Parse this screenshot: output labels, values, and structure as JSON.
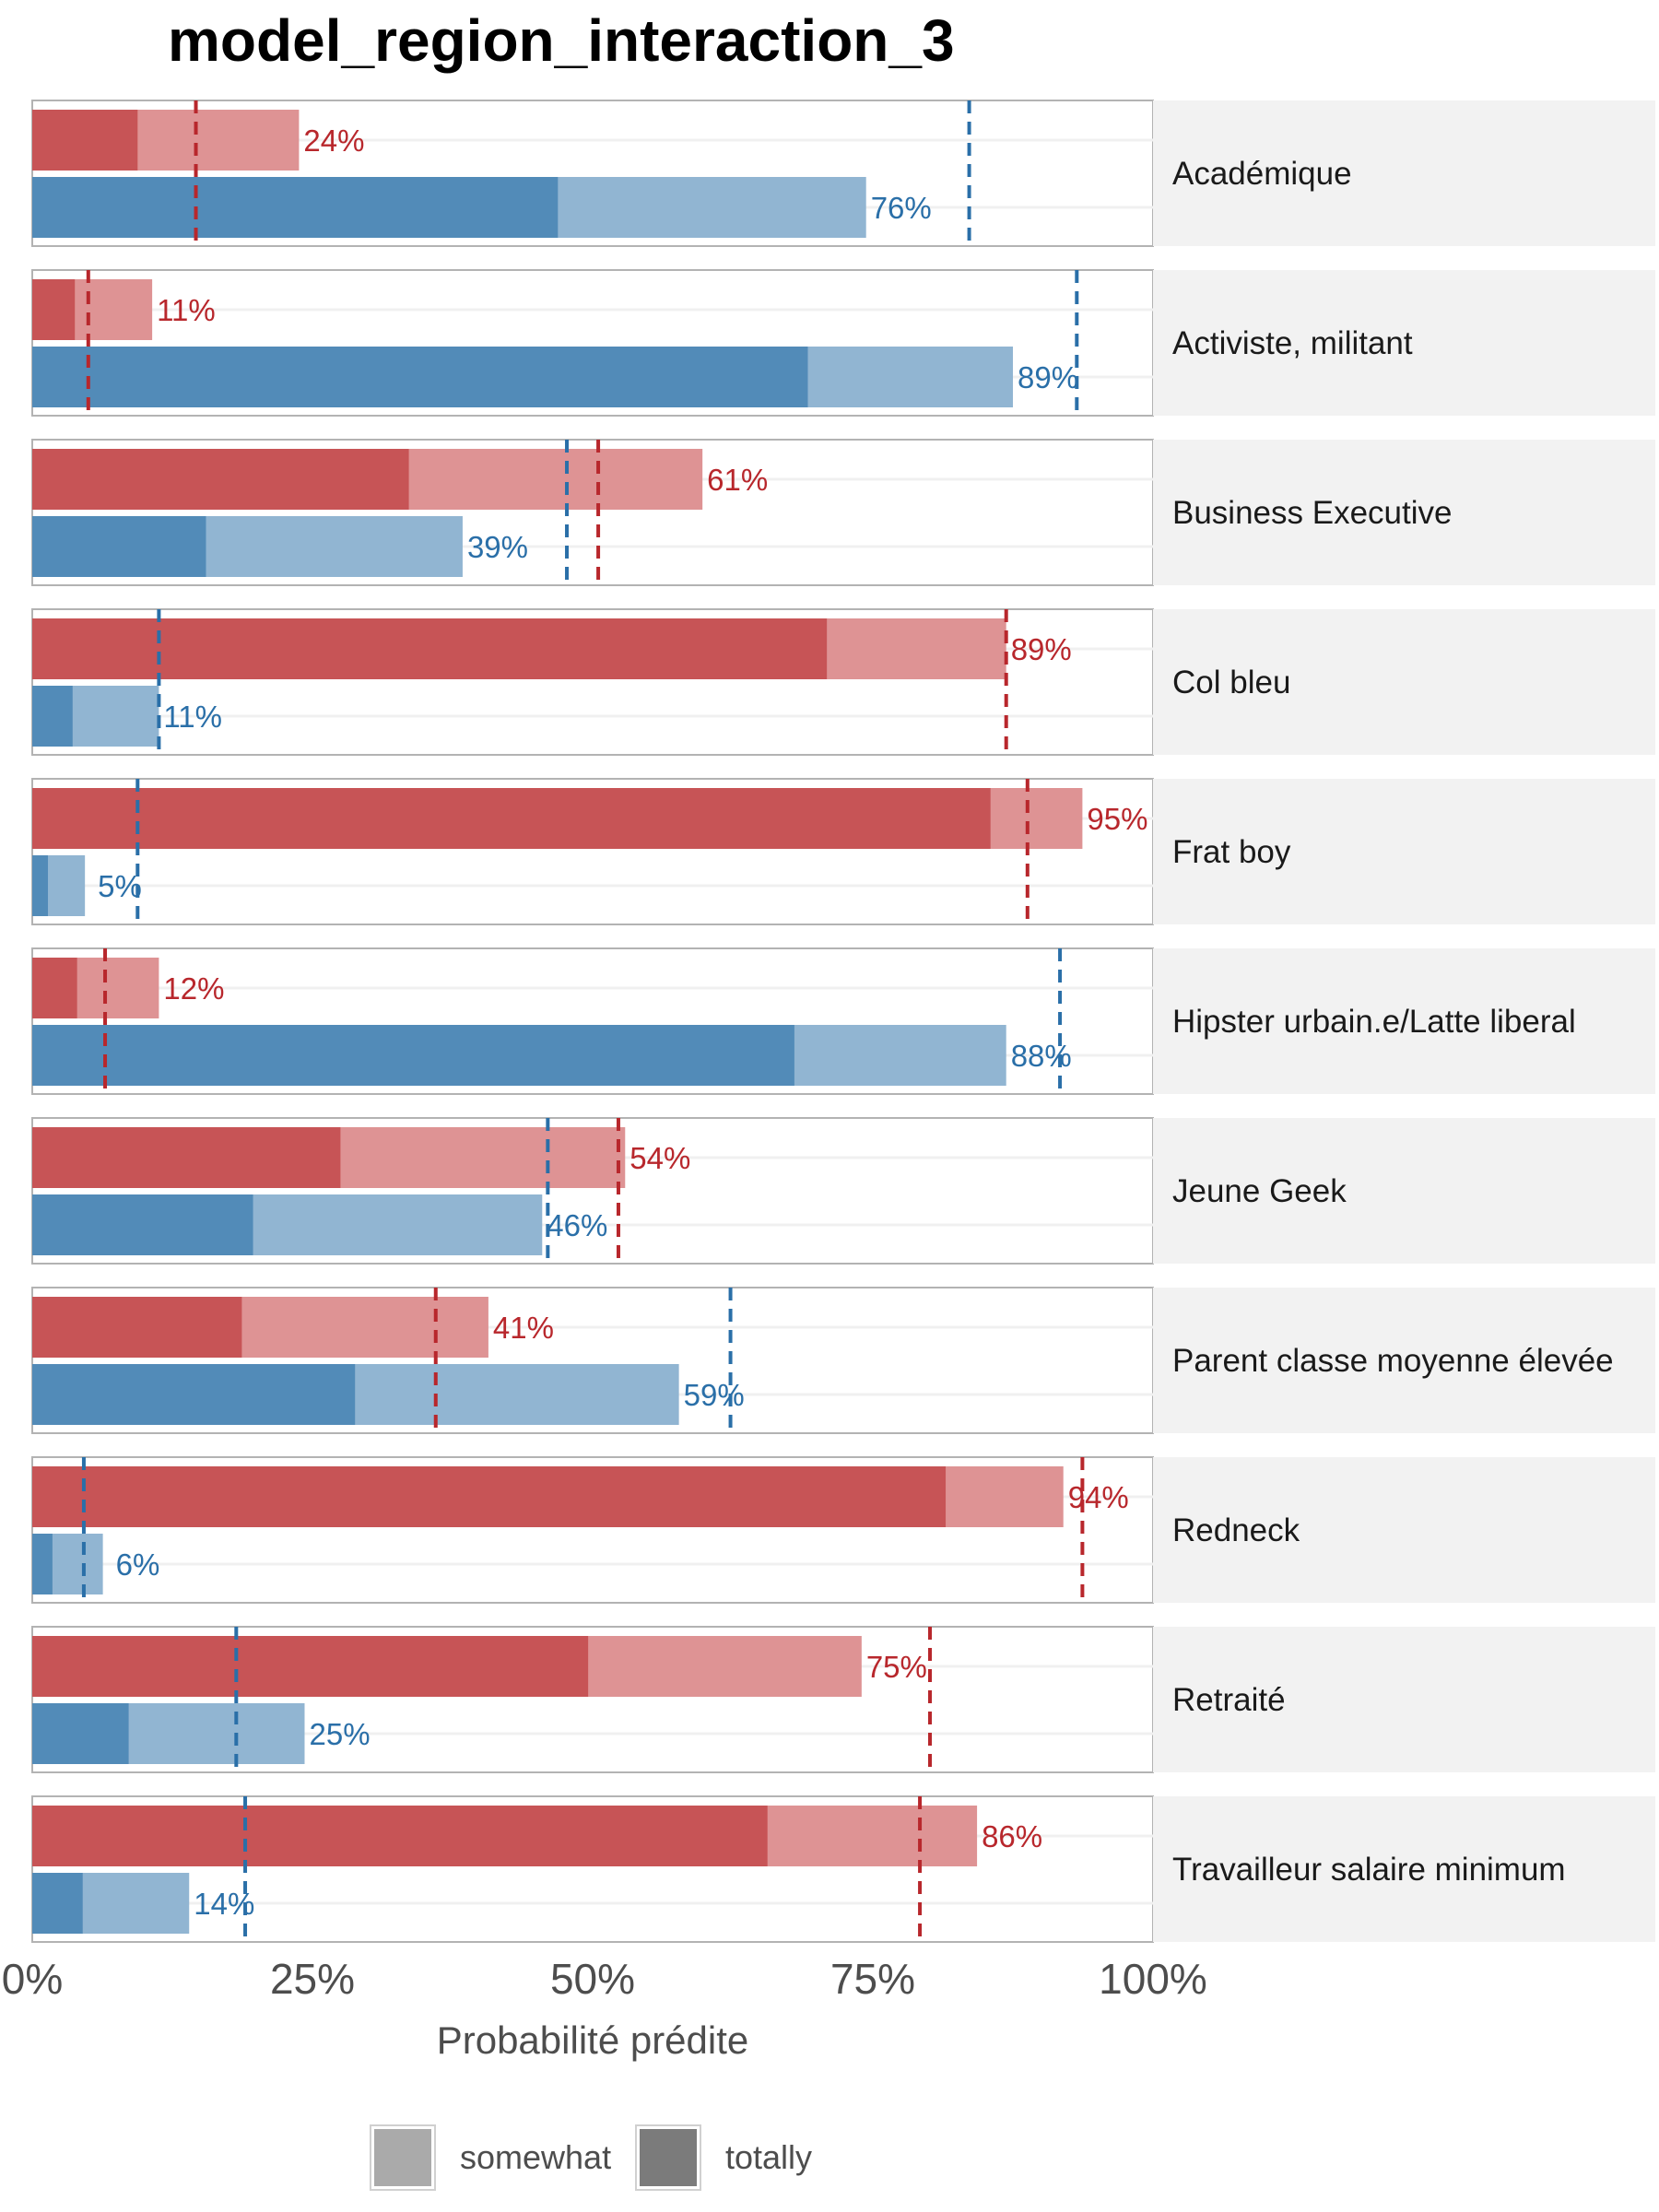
{
  "chart_data": {
    "type": "bar",
    "title": "model_region_interaction_3",
    "xlabel": "Probabilité prédite",
    "xlim": [
      0,
      1
    ],
    "x_ticks": [
      "0%",
      "25%",
      "50%",
      "75%",
      "100%"
    ],
    "x_tick_values": [
      0,
      0.25,
      0.5,
      0.75,
      1.0
    ],
    "grid": true,
    "legend": {
      "placement": "bottom",
      "items": [
        {
          "label": "somewhat",
          "shade": "light"
        },
        {
          "label": "totally",
          "shade": "dark"
        }
      ]
    },
    "colors": {
      "red_dark": "#c75456",
      "red_light": "#de9394",
      "red_line": "#b8272c",
      "red_text": "#b8272c",
      "blue_dark": "#528bb8",
      "blue_light": "#91b5d2",
      "blue_line": "#2a6fa8",
      "blue_text": "#2a6fa8",
      "strip_bg": "#f2f2f2",
      "panel_border": "#b3b3b3",
      "grid": "#f0f0f0"
    },
    "panels": [
      {
        "category": "Académique",
        "red": {
          "totally": 0.094,
          "total": 0.238,
          "label": "24%",
          "ref": 0.146
        },
        "blue": {
          "totally": 0.469,
          "total": 0.744,
          "label": "76%",
          "ref": 0.836
        }
      },
      {
        "category": "Activiste, militant",
        "red": {
          "totally": 0.038,
          "total": 0.107,
          "label": "11%",
          "ref": 0.05
        },
        "blue": {
          "totally": 0.692,
          "total": 0.875,
          "label": "89%",
          "ref": 0.932
        }
      },
      {
        "category": "Business Executive",
        "red": {
          "totally": 0.336,
          "total": 0.598,
          "label": "61%",
          "ref": 0.505
        },
        "blue": {
          "totally": 0.155,
          "total": 0.384,
          "label": "39%",
          "ref": 0.477
        }
      },
      {
        "category": "Col bleu",
        "red": {
          "totally": 0.709,
          "total": 0.869,
          "label": "89%",
          "ref": 0.869
        },
        "blue": {
          "totally": 0.036,
          "total": 0.113,
          "label": "11%",
          "ref": 0.113
        }
      },
      {
        "category": "Frat boy",
        "red": {
          "totally": 0.855,
          "total": 0.937,
          "label": "95%",
          "ref": 0.888
        },
        "blue": {
          "totally": 0.014,
          "total": 0.047,
          "label": "5%",
          "ref": 0.094
        }
      },
      {
        "category": "Hipster urbain.e/Latte liberal",
        "red": {
          "totally": 0.04,
          "total": 0.113,
          "label": "12%",
          "ref": 0.065
        },
        "blue": {
          "totally": 0.68,
          "total": 0.869,
          "label": "88%",
          "ref": 0.917
        }
      },
      {
        "category": "Jeune Geek",
        "red": {
          "totally": 0.275,
          "total": 0.529,
          "label": "54%",
          "ref": 0.523
        },
        "blue": {
          "totally": 0.197,
          "total": 0.455,
          "label": "46%",
          "ref": 0.46
        }
      },
      {
        "category": "Parent classe moyenne élevée",
        "red": {
          "totally": 0.187,
          "total": 0.407,
          "label": "41%",
          "ref": 0.36
        },
        "blue": {
          "totally": 0.288,
          "total": 0.577,
          "label": "59%",
          "ref": 0.623
        }
      },
      {
        "category": "Redneck",
        "red": {
          "totally": 0.815,
          "total": 0.92,
          "label": "94%",
          "ref": 0.937
        },
        "blue": {
          "totally": 0.018,
          "total": 0.063,
          "label": "6%",
          "ref": 0.046
        }
      },
      {
        "category": "Retraité",
        "red": {
          "totally": 0.496,
          "total": 0.74,
          "label": "75%",
          "ref": 0.801
        },
        "blue": {
          "totally": 0.086,
          "total": 0.243,
          "label": "25%",
          "ref": 0.182
        }
      },
      {
        "category": "Travailleur salaire minimum",
        "red": {
          "totally": 0.656,
          "total": 0.843,
          "label": "86%",
          "ref": 0.792
        },
        "blue": {
          "totally": 0.045,
          "total": 0.14,
          "label": "14%",
          "ref": 0.19
        }
      }
    ]
  }
}
